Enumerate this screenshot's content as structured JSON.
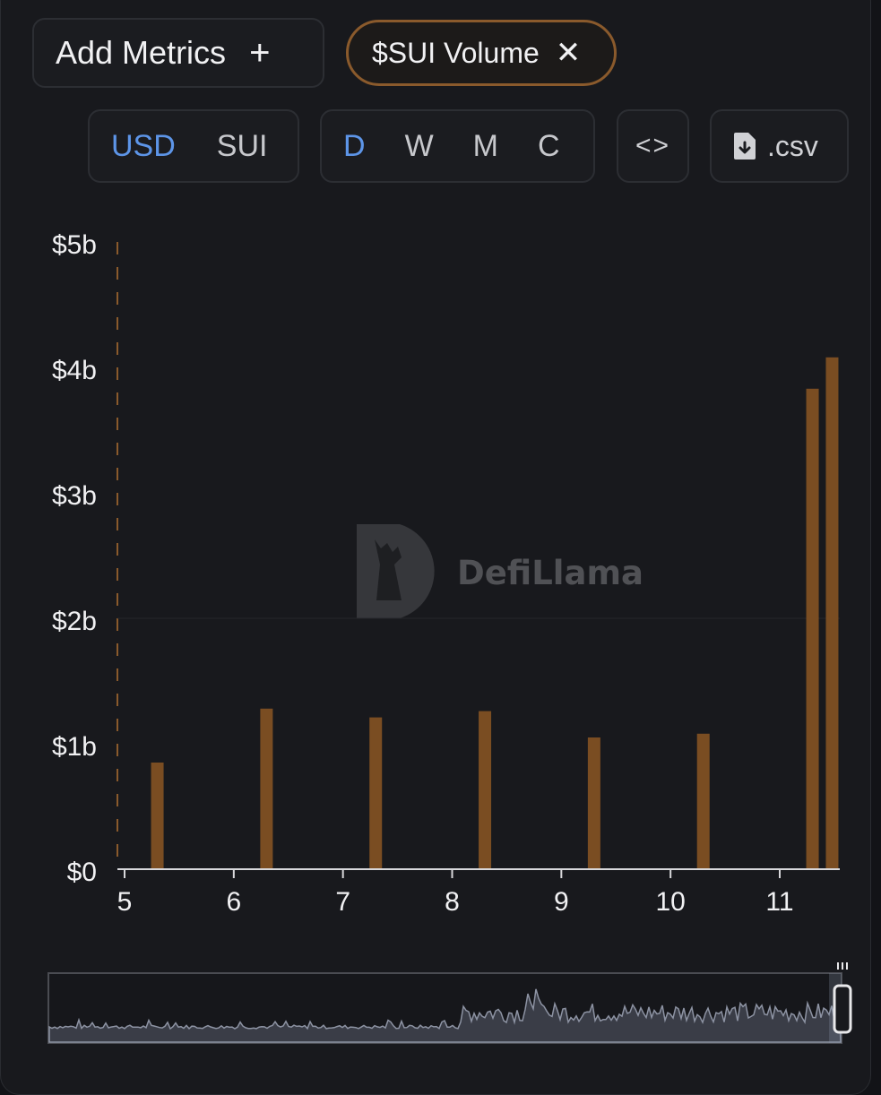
{
  "toolbar": {
    "add_metrics_label": "Add Metrics",
    "add_icon": "plus-icon",
    "metric_chip_label": "$SUI Volume",
    "metric_chip_close_icon": "close-icon",
    "currency_options": [
      "USD",
      "SUI"
    ],
    "currency_selected": "USD",
    "interval_options": [
      "D",
      "W",
      "M",
      "C"
    ],
    "interval_selected": "D",
    "embed_label": "<>",
    "csv_label": ".csv",
    "csv_icon": "file-download-icon"
  },
  "watermark": {
    "text": "DefiLlama"
  },
  "colors": {
    "bar": "#7a4d22",
    "accent": "#5d95e8",
    "chip_border": "#8a5a2c"
  },
  "chart_data": {
    "type": "bar",
    "title": "",
    "xlabel": "",
    "ylabel": "",
    "y_tick_labels": [
      "$0",
      "$1b",
      "$2b",
      "$3b",
      "$4b",
      "$5b"
    ],
    "x_tick_labels": [
      "5",
      "6",
      "7",
      "8",
      "9",
      "10",
      "11"
    ],
    "ylim": [
      0,
      5
    ],
    "xlim": [
      5,
      11.6
    ],
    "unit": "billion USD",
    "series": [
      {
        "x": [
          5.3,
          6.3,
          7.3,
          8.3,
          9.3,
          10.3,
          11.3,
          11.48
        ],
        "values": [
          0.85,
          1.28,
          1.21,
          1.26,
          1.05,
          1.08,
          3.83,
          4.08
        ]
      }
    ],
    "grid": "horizontal line at $2b",
    "legend": "none"
  }
}
